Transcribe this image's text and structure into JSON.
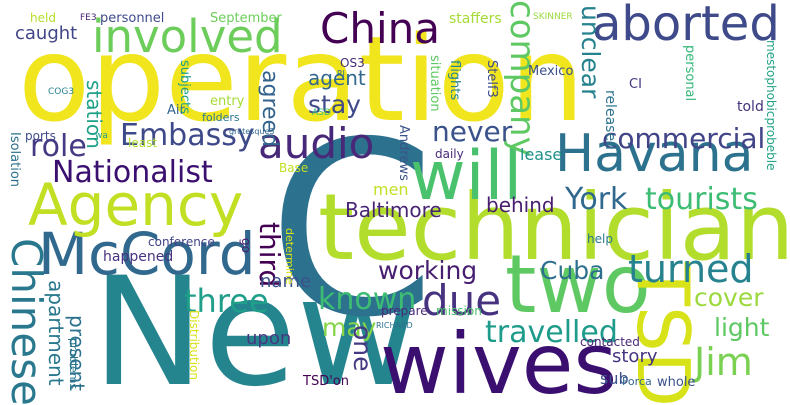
{
  "words": [
    {
      "text": "operation",
      "color": "#f1e51d"
    },
    {
      "text": "New",
      "color": "#25858e"
    },
    {
      "text": "C",
      "color": "#2c718e"
    },
    {
      "text": "technicians",
      "color": "#b2dd2d"
    },
    {
      "text": "wives",
      "color": "#3b0f70"
    },
    {
      "text": "two",
      "color": "#5ec962"
    },
    {
      "text": "Havana",
      "color": "#2c728e"
    },
    {
      "text": "McCord",
      "color": "#31688e"
    },
    {
      "text": "China",
      "color": "#440154"
    },
    {
      "text": "aborted",
      "color": "#3e4a89"
    },
    {
      "text": "involved",
      "color": "#6ccd5a"
    },
    {
      "text": "Agency",
      "color": "#c2df23"
    },
    {
      "text": "will",
      "color": "#4ac16d"
    },
    {
      "text": "TSD",
      "color": "#d8e219"
    },
    {
      "text": "Jim",
      "color": "#7ad151"
    },
    {
      "text": "Nationalist",
      "color": "#3b0f70"
    },
    {
      "text": "audio",
      "color": "#482878"
    },
    {
      "text": "Chinese",
      "color": "#2a788e"
    },
    {
      "text": "due",
      "color": "#46327e"
    },
    {
      "text": "turned",
      "color": "#26828e"
    },
    {
      "text": "Embassy",
      "color": "#3e4989"
    },
    {
      "text": "role",
      "color": "#443983"
    },
    {
      "text": "commercial",
      "color": "#414487"
    },
    {
      "text": "company",
      "color": "#5ec962"
    },
    {
      "text": "York",
      "color": "#31688e"
    },
    {
      "text": "tourists",
      "color": "#3dbc74"
    },
    {
      "text": "never",
      "color": "#3b528b"
    },
    {
      "text": "three",
      "color": "#1f9e89"
    },
    {
      "text": "known",
      "color": "#3dbc74"
    },
    {
      "text": "travelled",
      "color": "#1e9b8a"
    },
    {
      "text": "working",
      "color": "#481f70"
    },
    {
      "text": "Cuba",
      "color": "#2d708e"
    },
    {
      "text": "third",
      "color": "#440154"
    },
    {
      "text": "cover",
      "color": "#9bd93c"
    },
    {
      "text": "light",
      "color": "#5ec962"
    },
    {
      "text": "may",
      "color": "#86d549"
    },
    {
      "text": "one",
      "color": "#443a83"
    },
    {
      "text": "stay",
      "color": "#3e4a89"
    },
    {
      "text": "agent",
      "color": "#31688e"
    },
    {
      "text": "agreed",
      "color": "#33638d"
    },
    {
      "text": "Baltimore",
      "color": "#482475"
    },
    {
      "text": "behind",
      "color": "#481d6f"
    },
    {
      "text": "men",
      "color": "#c2df23"
    },
    {
      "text": "unclear",
      "color": "#26828e"
    },
    {
      "text": "caught",
      "color": "#404688"
    },
    {
      "text": "station",
      "color": "#1fa187"
    },
    {
      "text": "apartment",
      "color": "#2a788e"
    },
    {
      "text": "present",
      "color": "#2c728e"
    },
    {
      "text": "name",
      "color": "#3b528b"
    },
    {
      "text": "upon",
      "color": "#453781"
    },
    {
      "text": "story",
      "color": "#46337f"
    },
    {
      "text": "sub",
      "color": "#3b528b"
    },
    {
      "text": "lease",
      "color": "#21918c"
    },
    {
      "text": "released",
      "color": "#2c728e"
    },
    {
      "text": "told",
      "color": "#46327e"
    },
    {
      "text": "personal",
      "color": "#35b779"
    },
    {
      "text": "mestophobicprobeble",
      "color": "#20a386"
    },
    {
      "text": "held",
      "color": "#b5de2b"
    },
    {
      "text": "FE3",
      "color": "#482475"
    },
    {
      "text": "personnel",
      "color": "#3e4a89"
    },
    {
      "text": "September",
      "color": "#6ccd5a"
    },
    {
      "text": "staffers",
      "color": "#a5db36"
    },
    {
      "text": "SKINNER",
      "color": "#9bd93c"
    },
    {
      "text": "Mexico",
      "color": "#3b528b"
    },
    {
      "text": "OS3",
      "color": "#472d7b"
    },
    {
      "text": "RI",
      "color": "#2c728e"
    },
    {
      "text": "ASD",
      "color": "#35b779"
    },
    {
      "text": "entry",
      "color": "#a5db36"
    },
    {
      "text": "situation",
      "color": "#5ec962"
    },
    {
      "text": "flights",
      "color": "#25858e"
    },
    {
      "text": "Stelf3",
      "color": "#3e4a89"
    },
    {
      "text": "CI",
      "color": "#453781"
    },
    {
      "text": "COG3",
      "color": "#26828e"
    },
    {
      "text": "Air",
      "color": "#33638d"
    },
    {
      "text": "subjects",
      "color": "#1fa187"
    },
    {
      "text": "folders",
      "color": "#2a788e"
    },
    {
      "text": "grotesque3",
      "color": "#31688e"
    },
    {
      "text": "least",
      "color": "#addc30"
    },
    {
      "text": "daily",
      "color": "#482878"
    },
    {
      "text": "Andrews",
      "color": "#3b528b"
    },
    {
      "text": "ports",
      "color": "#3e4a89"
    },
    {
      "text": "Isolation",
      "color": "#2c728e"
    },
    {
      "text": "wa",
      "color": "#1f9e89"
    },
    {
      "text": "Base",
      "color": "#c2df23"
    },
    {
      "text": "happened",
      "color": "#46327e"
    },
    {
      "text": "conference",
      "color": "#414487"
    },
    {
      "text": "go",
      "color": "#481f70"
    },
    {
      "text": "determine",
      "color": "#d8e219"
    },
    {
      "text": "help",
      "color": "#2a788e"
    },
    {
      "text": "prepare",
      "color": "#482878"
    },
    {
      "text": "mission",
      "color": "#4ac16d"
    },
    {
      "text": "problems",
      "color": "#2a788e"
    },
    {
      "text": "RICHARD",
      "color": "#2c728e"
    },
    {
      "text": "contacted",
      "color": "#482878"
    },
    {
      "text": "Distribution",
      "color": "#d8e219"
    },
    {
      "text": "whole",
      "color": "#3b528b"
    },
    {
      "text": "TSD'on",
      "color": "#440154"
    },
    {
      "text": "Forca",
      "color": "#31688e"
    }
  ]
}
